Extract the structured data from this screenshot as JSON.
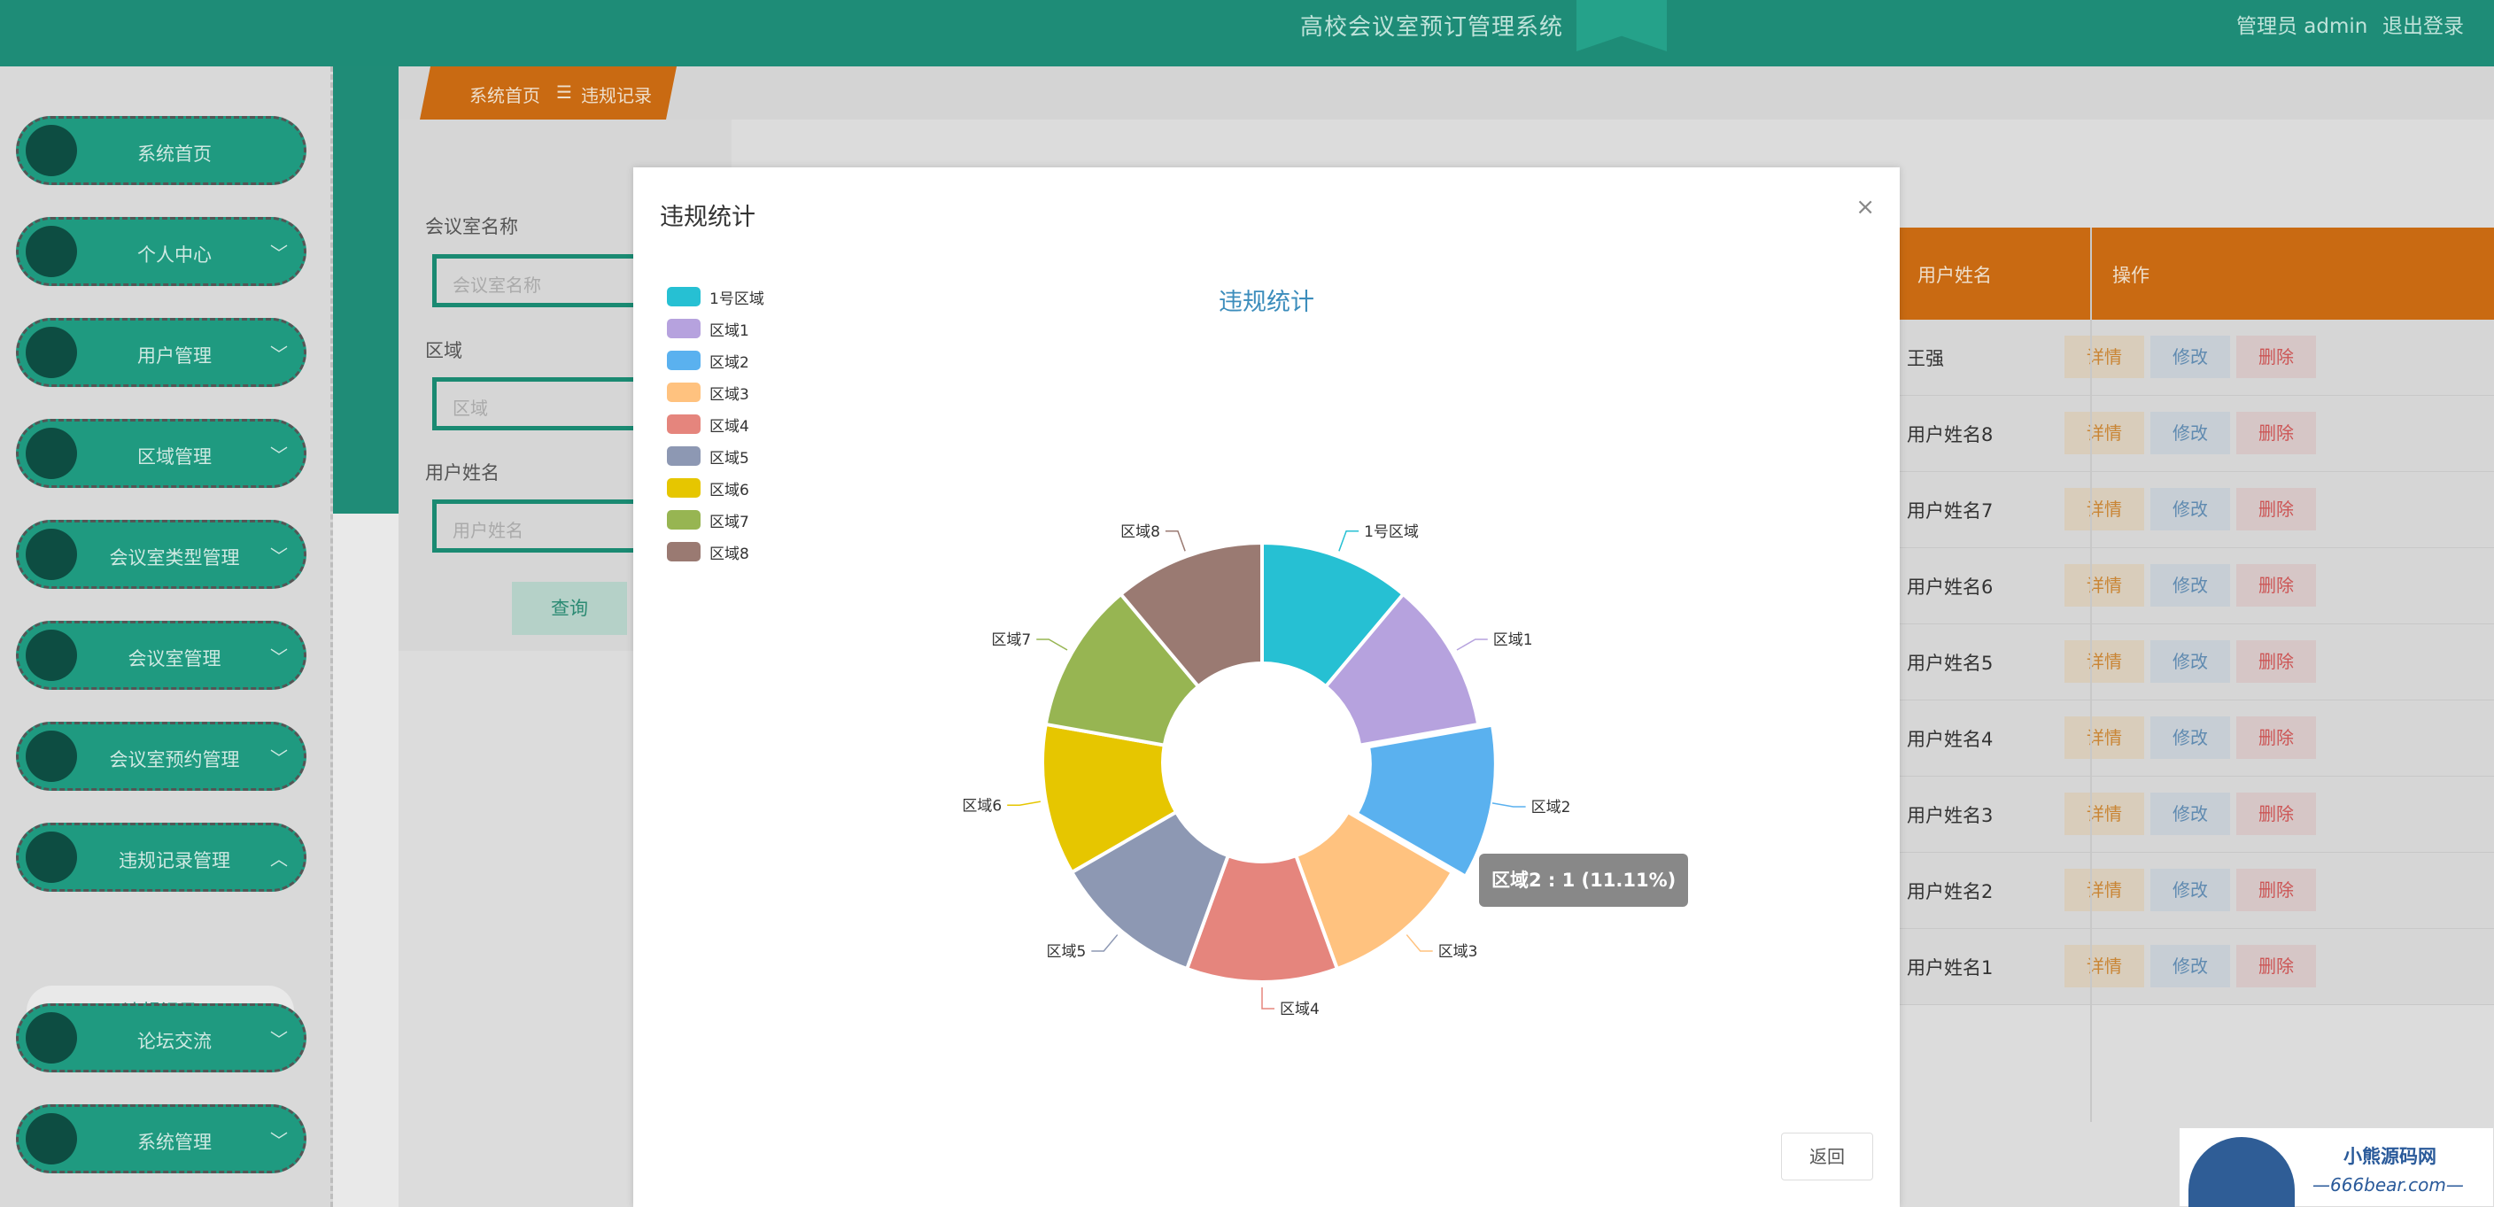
{
  "header": {
    "title": "高校会议室预订管理系统",
    "user": "管理员 admin",
    "logout": "退出登录"
  },
  "sidebar": {
    "items": [
      {
        "label": "系统首页",
        "chevron": ""
      },
      {
        "label": "个人中心",
        "chevron": "﹀"
      },
      {
        "label": "用户管理",
        "chevron": "﹀"
      },
      {
        "label": "区域管理",
        "chevron": "﹀"
      },
      {
        "label": "会议室类型管理",
        "chevron": "﹀"
      },
      {
        "label": "会议室管理",
        "chevron": "﹀"
      },
      {
        "label": "会议室预约管理",
        "chevron": "﹀"
      },
      {
        "label": "违规记录管理",
        "chevron": "︿"
      },
      {
        "label": "论坛交流",
        "chevron": "﹀"
      },
      {
        "label": "系统管理",
        "chevron": "﹀"
      }
    ],
    "sub_item": "违规记录"
  },
  "breadcrumb": {
    "home": "系统首页",
    "sep": "☰",
    "current": "违规记录"
  },
  "search": {
    "room_name_label": "会议室名称",
    "room_name_placeholder": "会议室名称",
    "area_label": "区域",
    "area_placeholder": "区域",
    "username_label": "用户姓名",
    "username_placeholder": "用户姓名",
    "query_button": "查询"
  },
  "table": {
    "col_user": "用户姓名",
    "col_ops": "操作",
    "rows": [
      {
        "name": "王强"
      },
      {
        "name": "用户姓名8"
      },
      {
        "name": "用户姓名7"
      },
      {
        "name": "用户姓名6"
      },
      {
        "name": "用户姓名5"
      },
      {
        "name": "用户姓名4"
      },
      {
        "name": "用户姓名3"
      },
      {
        "name": "用户姓名2"
      },
      {
        "name": "用户姓名1"
      }
    ],
    "btn_detail": "详情",
    "btn_edit": "修改",
    "btn_delete": "删除"
  },
  "modal": {
    "title": "违规统计",
    "close": "×",
    "return_button": "返回",
    "tooltip": "区域2 : 1 (11.11%)"
  },
  "chart_data": {
    "type": "pie",
    "title": "违规统计",
    "donut": true,
    "legend_position": "top-left",
    "slices": [
      {
        "label": "1号区域",
        "value": 1,
        "color": "#26c0d3"
      },
      {
        "label": "区域1",
        "value": 1,
        "color": "#b6a2de"
      },
      {
        "label": "区域2",
        "value": 1,
        "color": "#5ab1ef"
      },
      {
        "label": "区域3",
        "value": 1,
        "color": "#ffc27f"
      },
      {
        "label": "区域4",
        "value": 1,
        "color": "#e5857d"
      },
      {
        "label": "区域5",
        "value": 1,
        "color": "#8d98b3"
      },
      {
        "label": "区域6",
        "value": 1,
        "color": "#e6c600"
      },
      {
        "label": "区域7",
        "value": 1,
        "color": "#97b552"
      },
      {
        "label": "区域8",
        "value": 1,
        "color": "#9a7a72"
      }
    ]
  },
  "watermark": {
    "line1": "小熊源码网",
    "line2": "—666bear.com—"
  }
}
